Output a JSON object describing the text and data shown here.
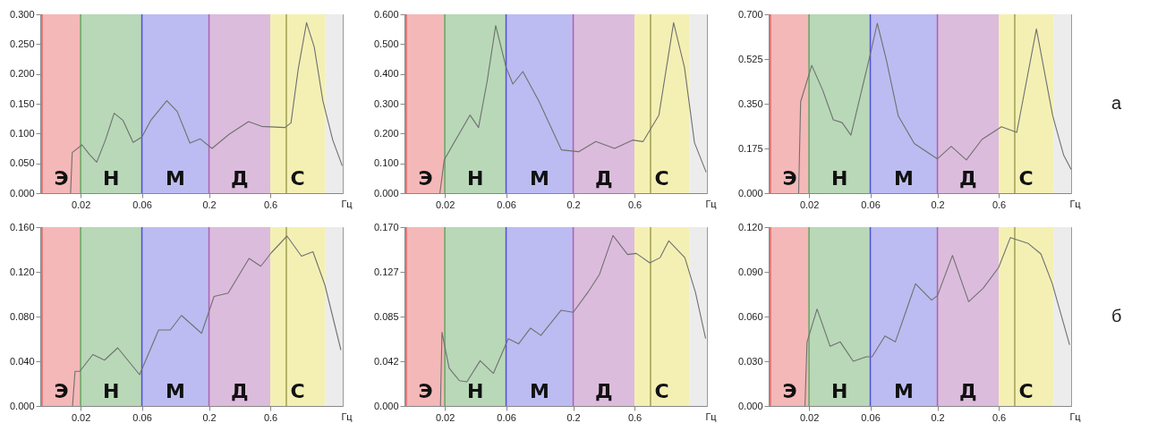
{
  "chart_data": [
    {
      "type": "line",
      "log": "x",
      "grid": true,
      "xlabel": "Гц",
      "xlim": [
        0.0097,
        2.2
      ],
      "xticks": [
        0.02,
        0.06,
        0.2,
        0.6
      ],
      "ylim": [
        0,
        0.3
      ],
      "yticks": [
        {
          "value": 0,
          "label": "0.000"
        },
        {
          "value": 0.05,
          "label": "0.050"
        },
        {
          "value": 0.1,
          "label": "0.100"
        },
        {
          "value": 0.15,
          "label": "0.150"
        },
        {
          "value": 0.2,
          "label": "0.200"
        },
        {
          "value": 0.25,
          "label": "0.250"
        },
        {
          "value": 0.3,
          "label": "0.300"
        }
      ],
      "bands": [
        {
          "axis": "x",
          "from": 0.01,
          "to": 0.02,
          "label": "Э",
          "color": "#f4b8b8"
        },
        {
          "axis": "x",
          "from": 0.02,
          "to": 0.06,
          "label": "Н",
          "color": "#b8d8b8"
        },
        {
          "axis": "x",
          "from": 0.06,
          "to": 0.2,
          "label": "М",
          "color": "#bcbcf2"
        },
        {
          "axis": "x",
          "from": 0.2,
          "to": 0.6,
          "label": "Д",
          "color": "#dcbcdc"
        },
        {
          "axis": "x",
          "from": 0.6,
          "to": 1.6,
          "label": "С",
          "color": "#f4f0b4"
        },
        {
          "axis": "x",
          "from": 1.6,
          "to": 2.2,
          "color": "#ececec"
        }
      ],
      "ref_lines": [
        {
          "axis": "x",
          "value": 0.01,
          "color": "#e06060"
        },
        {
          "axis": "x",
          "value": 0.02,
          "color": "#60a860"
        },
        {
          "axis": "x",
          "value": 0.06,
          "color": "#5050d8"
        },
        {
          "axis": "x",
          "value": 0.2,
          "color": "#b060b0"
        },
        {
          "axis": "x",
          "value": 0.8,
          "color": "#a0a050"
        }
      ],
      "series": [
        {
          "color": "#707070",
          "x": [
            0.0167,
            0.0172,
            0.0205,
            0.0234,
            0.0267,
            0.0312,
            0.0365,
            0.0428,
            0.0513,
            0.06,
            0.0703,
            0.0938,
            0.113,
            0.142,
            0.171,
            0.211,
            0.288,
            0.406,
            0.514,
            0.78,
            0.87,
            0.99,
            1.15,
            1.32,
            1.54,
            1.84,
            2.18
          ],
          "values": [
            0,
            0.068,
            0.081,
            0.065,
            0.052,
            0.089,
            0.134,
            0.122,
            0.085,
            0.094,
            0.122,
            0.155,
            0.137,
            0.084,
            0.091,
            0.075,
            0.099,
            0.12,
            0.112,
            0.11,
            0.118,
            0.208,
            0.286,
            0.245,
            0.155,
            0.089,
            0.046
          ]
        }
      ]
    },
    {
      "type": "line",
      "log": "x",
      "grid": true,
      "xlabel": "Гц",
      "xlim": [
        0.0097,
        2.2
      ],
      "xticks": [
        0.02,
        0.06,
        0.2,
        0.6
      ],
      "ylim": [
        0,
        0.6
      ],
      "yticks": [
        {
          "value": 0,
          "label": "0.000"
        },
        {
          "value": 0.1,
          "label": "0.100"
        },
        {
          "value": 0.2,
          "label": "0.200"
        },
        {
          "value": 0.3,
          "label": "0.300"
        },
        {
          "value": 0.4,
          "label": "0.400"
        },
        {
          "value": 0.5,
          "label": "0.500"
        },
        {
          "value": 0.6,
          "label": "0.600"
        }
      ],
      "bands": [
        {
          "axis": "x",
          "from": 0.01,
          "to": 0.02,
          "label": "Э",
          "color": "#f4b8b8"
        },
        {
          "axis": "x",
          "from": 0.02,
          "to": 0.06,
          "label": "Н",
          "color": "#b8d8b8"
        },
        {
          "axis": "x",
          "from": 0.06,
          "to": 0.2,
          "label": "М",
          "color": "#bcbcf2"
        },
        {
          "axis": "x",
          "from": 0.2,
          "to": 0.6,
          "label": "Д",
          "color": "#dcbcdc"
        },
        {
          "axis": "x",
          "from": 0.6,
          "to": 1.6,
          "label": "С",
          "color": "#f4f0b4"
        },
        {
          "axis": "x",
          "from": 1.6,
          "to": 2.2,
          "color": "#ececec"
        }
      ],
      "ref_lines": [
        {
          "axis": "x",
          "value": 0.01,
          "color": "#e06060"
        },
        {
          "axis": "x",
          "value": 0.02,
          "color": "#60a860"
        },
        {
          "axis": "x",
          "value": 0.06,
          "color": "#5050d8"
        },
        {
          "axis": "x",
          "value": 0.2,
          "color": "#b060b0"
        },
        {
          "axis": "x",
          "value": 0.8,
          "color": "#a0a050"
        }
      ],
      "series": [
        {
          "color": "#707070",
          "x": [
            0.0183,
            0.0198,
            0.0249,
            0.0314,
            0.0366,
            0.0427,
            0.0498,
            0.06,
            0.0678,
            0.081,
            0.108,
            0.162,
            0.22,
            0.3,
            0.42,
            0.58,
            0.7,
            0.93,
            1.21,
            1.47,
            1.76,
            2.17
          ],
          "values": [
            0,
            0.112,
            0.187,
            0.262,
            0.22,
            0.375,
            0.562,
            0.422,
            0.366,
            0.408,
            0.309,
            0.145,
            0.139,
            0.173,
            0.15,
            0.178,
            0.173,
            0.262,
            0.572,
            0.422,
            0.169,
            0.07
          ]
        }
      ]
    },
    {
      "type": "line",
      "log": "x",
      "grid": true,
      "xlabel": "Гц",
      "xlim": [
        0.0097,
        2.2
      ],
      "xticks": [
        0.02,
        0.06,
        0.2,
        0.6
      ],
      "ylim": [
        0,
        0.7
      ],
      "yticks": [
        {
          "value": 0,
          "label": "0.000"
        },
        {
          "value": 0.175,
          "label": "0.175"
        },
        {
          "value": 0.35,
          "label": "0.350"
        },
        {
          "value": 0.525,
          "label": "0.525"
        },
        {
          "value": 0.7,
          "label": "0.700"
        }
      ],
      "bands": [
        {
          "axis": "x",
          "from": 0.01,
          "to": 0.02,
          "label": "Э",
          "color": "#f4b8b8"
        },
        {
          "axis": "x",
          "from": 0.02,
          "to": 0.06,
          "label": "Н",
          "color": "#b8d8b8"
        },
        {
          "axis": "x",
          "from": 0.06,
          "to": 0.2,
          "label": "М",
          "color": "#bcbcf2"
        },
        {
          "axis": "x",
          "from": 0.2,
          "to": 0.6,
          "label": "Д",
          "color": "#dcbcdc"
        },
        {
          "axis": "x",
          "from": 0.6,
          "to": 1.6,
          "label": "С",
          "color": "#f4f0b4"
        },
        {
          "axis": "x",
          "from": 1.6,
          "to": 2.2,
          "color": "#ececec"
        }
      ],
      "ref_lines": [
        {
          "axis": "x",
          "value": 0.01,
          "color": "#e06060"
        },
        {
          "axis": "x",
          "value": 0.02,
          "color": "#60a860"
        },
        {
          "axis": "x",
          "value": 0.06,
          "color": "#5050d8"
        },
        {
          "axis": "x",
          "value": 0.2,
          "color": "#b060b0"
        },
        {
          "axis": "x",
          "value": 0.8,
          "color": "#a0a050"
        }
      ],
      "annotations": [
        "а"
      ],
      "series": [
        {
          "color": "#707070",
          "x": [
            0.0166,
            0.0172,
            0.021,
            0.0256,
            0.0309,
            0.0362,
            0.0424,
            0.06,
            0.068,
            0.08,
            0.099,
            0.132,
            0.2,
            0.256,
            0.336,
            0.444,
            0.63,
            0.83,
            1.18,
            1.58,
            1.92,
            2.2
          ],
          "values": [
            0,
            0.358,
            0.5,
            0.402,
            0.287,
            0.276,
            0.227,
            0.544,
            0.665,
            0.522,
            0.303,
            0.194,
            0.134,
            0.183,
            0.13,
            0.21,
            0.26,
            0.238,
            0.643,
            0.303,
            0.15,
            0.093
          ]
        }
      ]
    },
    {
      "type": "line",
      "log": "x",
      "grid": true,
      "xlabel": "Гц",
      "xlim": [
        0.0097,
        2.2
      ],
      "xticks": [
        0.02,
        0.06,
        0.2,
        0.6
      ],
      "ylim": [
        0,
        0.16
      ],
      "yticks": [
        {
          "value": 0,
          "label": "0.000"
        },
        {
          "value": 0.04,
          "label": "0.040"
        },
        {
          "value": 0.08,
          "label": "0.080"
        },
        {
          "value": 0.12,
          "label": "0.120"
        },
        {
          "value": 0.16,
          "label": "0.160"
        }
      ],
      "bands": [
        {
          "axis": "x",
          "from": 0.01,
          "to": 0.02,
          "label": "Э",
          "color": "#f4b8b8"
        },
        {
          "axis": "x",
          "from": 0.02,
          "to": 0.06,
          "label": "Н",
          "color": "#b8d8b8"
        },
        {
          "axis": "x",
          "from": 0.06,
          "to": 0.2,
          "label": "М",
          "color": "#bcbcf2"
        },
        {
          "axis": "x",
          "from": 0.2,
          "to": 0.6,
          "label": "Д",
          "color": "#dcbcdc"
        },
        {
          "axis": "x",
          "from": 0.6,
          "to": 1.6,
          "label": "С",
          "color": "#f4f0b4"
        },
        {
          "axis": "x",
          "from": 1.6,
          "to": 2.2,
          "color": "#ececec"
        }
      ],
      "ref_lines": [
        {
          "axis": "x",
          "value": 0.01,
          "color": "#e06060"
        },
        {
          "axis": "x",
          "value": 0.02,
          "color": "#60a860"
        },
        {
          "axis": "x",
          "value": 0.06,
          "color": "#5050d8"
        },
        {
          "axis": "x",
          "value": 0.2,
          "color": "#b060b0"
        },
        {
          "axis": "x",
          "value": 0.8,
          "color": "#a0a050"
        }
      ],
      "series": [
        {
          "color": "#707070",
          "x": [
            0.0173,
            0.0181,
            0.0197,
            0.0249,
            0.0307,
            0.0389,
            0.0576,
            0.081,
            0.1,
            0.122,
            0.175,
            0.219,
            0.282,
            0.41,
            0.506,
            0.61,
            0.81,
            1.05,
            1.29,
            1.6,
            2.13
          ],
          "values": [
            0,
            0.031,
            0.031,
            0.046,
            0.041,
            0.052,
            0.028,
            0.068,
            0.068,
            0.081,
            0.065,
            0.098,
            0.101,
            0.132,
            0.125,
            0.137,
            0.152,
            0.134,
            0.138,
            0.108,
            0.05
          ]
        }
      ]
    },
    {
      "type": "line",
      "log": "x",
      "grid": true,
      "xlabel": "Гц",
      "xlim": [
        0.0097,
        2.2
      ],
      "xticks": [
        0.02,
        0.06,
        0.2,
        0.6
      ],
      "ylim": [
        0,
        0.17
      ],
      "yticks": [
        {
          "value": 0,
          "label": "0.000"
        },
        {
          "value": 0.0425,
          "label": "0.042"
        },
        {
          "value": 0.085,
          "label": "0.085"
        },
        {
          "value": 0.1275,
          "label": "0.127"
        },
        {
          "value": 0.17,
          "label": "0.170"
        }
      ],
      "bands": [
        {
          "axis": "x",
          "from": 0.01,
          "to": 0.02,
          "label": "Э",
          "color": "#f4b8b8"
        },
        {
          "axis": "x",
          "from": 0.02,
          "to": 0.06,
          "label": "Н",
          "color": "#b8d8b8"
        },
        {
          "axis": "x",
          "from": 0.06,
          "to": 0.2,
          "label": "М",
          "color": "#bcbcf2"
        },
        {
          "axis": "x",
          "from": 0.2,
          "to": 0.6,
          "label": "Д",
          "color": "#dcbcdc"
        },
        {
          "axis": "x",
          "from": 0.6,
          "to": 1.6,
          "label": "С",
          "color": "#f4f0b4"
        },
        {
          "axis": "x",
          "from": 1.6,
          "to": 2.2,
          "color": "#ececec"
        }
      ],
      "ref_lines": [
        {
          "axis": "x",
          "value": 0.01,
          "color": "#e06060"
        },
        {
          "axis": "x",
          "value": 0.02,
          "color": "#60a860"
        },
        {
          "axis": "x",
          "value": 0.06,
          "color": "#5050d8"
        },
        {
          "axis": "x",
          "value": 0.2,
          "color": "#b060b0"
        },
        {
          "axis": "x",
          "value": 0.8,
          "color": "#a0a050"
        }
      ],
      "series": [
        {
          "color": "#707070",
          "x": [
            0.0185,
            0.019,
            0.0216,
            0.026,
            0.0297,
            0.0377,
            0.0478,
            0.0624,
            0.075,
            0.093,
            0.112,
            0.161,
            0.2,
            0.26,
            0.32,
            0.408,
            0.53,
            0.62,
            0.79,
            0.95,
            1.11,
            1.48,
            1.79,
            2.15
          ],
          "values": [
            0,
            0.07,
            0.036,
            0.024,
            0.023,
            0.043,
            0.031,
            0.064,
            0.059,
            0.074,
            0.067,
            0.091,
            0.089,
            0.108,
            0.125,
            0.162,
            0.144,
            0.145,
            0.136,
            0.141,
            0.157,
            0.141,
            0.108,
            0.064
          ]
        }
      ]
    },
    {
      "type": "line",
      "log": "x",
      "grid": true,
      "xlabel": "Гц",
      "xlim": [
        0.0097,
        2.2
      ],
      "xticks": [
        0.02,
        0.06,
        0.2,
        0.6
      ],
      "ylim": [
        0,
        0.12
      ],
      "yticks": [
        {
          "value": 0,
          "label": "0.000"
        },
        {
          "value": 0.03,
          "label": "0.030"
        },
        {
          "value": 0.06,
          "label": "0.060"
        },
        {
          "value": 0.09,
          "label": "0.090"
        },
        {
          "value": 0.12,
          "label": "0.120"
        }
      ],
      "bands": [
        {
          "axis": "x",
          "from": 0.01,
          "to": 0.02,
          "label": "Э",
          "color": "#f4b8b8"
        },
        {
          "axis": "x",
          "from": 0.02,
          "to": 0.06,
          "label": "Н",
          "color": "#b8d8b8"
        },
        {
          "axis": "x",
          "from": 0.06,
          "to": 0.2,
          "label": "М",
          "color": "#bcbcf2"
        },
        {
          "axis": "x",
          "from": 0.2,
          "to": 0.6,
          "label": "Д",
          "color": "#dcbcdc"
        },
        {
          "axis": "x",
          "from": 0.6,
          "to": 1.6,
          "label": "С",
          "color": "#f4f0b4"
        },
        {
          "axis": "x",
          "from": 1.6,
          "to": 2.2,
          "color": "#ececec"
        }
      ],
      "ref_lines": [
        {
          "axis": "x",
          "value": 0.01,
          "color": "#e06060"
        },
        {
          "axis": "x",
          "value": 0.02,
          "color": "#60a860"
        },
        {
          "axis": "x",
          "value": 0.06,
          "color": "#5050d8"
        },
        {
          "axis": "x",
          "value": 0.2,
          "color": "#b060b0"
        },
        {
          "axis": "x",
          "value": 0.8,
          "color": "#a0a050"
        }
      ],
      "annotations": [
        "б"
      ],
      "series": [
        {
          "color": "#707070",
          "x": [
            0.0186,
            0.0193,
            0.0231,
            0.0292,
            0.035,
            0.0442,
            0.0558,
            0.0619,
            0.078,
            0.094,
            0.135,
            0.18,
            0.2,
            0.262,
            0.35,
            0.454,
            0.6,
            0.74,
            1.02,
            1.28,
            1.57,
            2.14
          ],
          "values": [
            0,
            0.043,
            0.065,
            0.04,
            0.043,
            0.03,
            0.033,
            0.033,
            0.047,
            0.043,
            0.082,
            0.071,
            0.074,
            0.101,
            0.07,
            0.079,
            0.093,
            0.113,
            0.109,
            0.102,
            0.082,
            0.041
          ]
        }
      ]
    }
  ]
}
